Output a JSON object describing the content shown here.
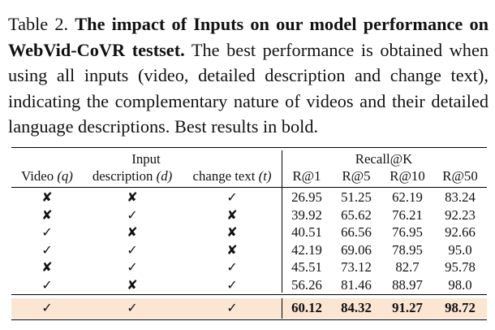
{
  "caption": {
    "label": "Table 2.",
    "title": "The impact of Inputs on our model performance on WebVid-CoVR testset.",
    "body": "The best performance is obtained when using all inputs (video, detailed description and change text), indicating the complementary nature of videos and their detailed language descriptions. Best results in bold."
  },
  "table": {
    "group_input": "Input",
    "group_recall": "Recall@K",
    "col_video": "Video",
    "col_video_sym": "(q)",
    "col_desc": "description",
    "col_desc_sym": "(d)",
    "col_change": "change text",
    "col_change_sym": "(t)",
    "recall_cols": [
      "R@1",
      "R@5",
      "R@10",
      "R@50"
    ],
    "rows": [
      {
        "video": "✘",
        "desc": "✘",
        "change": "✓",
        "r1": "26.95",
        "r5": "51.25",
        "r10": "62.19",
        "r50": "83.24"
      },
      {
        "video": "✘",
        "desc": "✓",
        "change": "✘",
        "r1": "39.92",
        "r5": "65.62",
        "r10": "76.21",
        "r50": "92.23"
      },
      {
        "video": "✓",
        "desc": "✘",
        "change": "✘",
        "r1": "40.51",
        "r5": "66.56",
        "r10": "76.95",
        "r50": "92.66"
      },
      {
        "video": "✓",
        "desc": "✓",
        "change": "✘",
        "r1": "42.19",
        "r5": "69.06",
        "r10": "78.95",
        "r50": "95.0"
      },
      {
        "video": "✘",
        "desc": "✓",
        "change": "✓",
        "r1": "45.51",
        "r5": "73.12",
        "r10": "82.7",
        "r50": "95.78"
      },
      {
        "video": "✓",
        "desc": "✘",
        "change": "✓",
        "r1": "56.26",
        "r5": "81.46",
        "r10": "88.97",
        "r50": "98.0"
      }
    ],
    "best_row": {
      "video": "✓",
      "desc": "✓",
      "change": "✓",
      "r1": "60.12",
      "r5": "84.32",
      "r10": "91.27",
      "r50": "98.72"
    },
    "highlight_color": "#fbe5d3"
  }
}
